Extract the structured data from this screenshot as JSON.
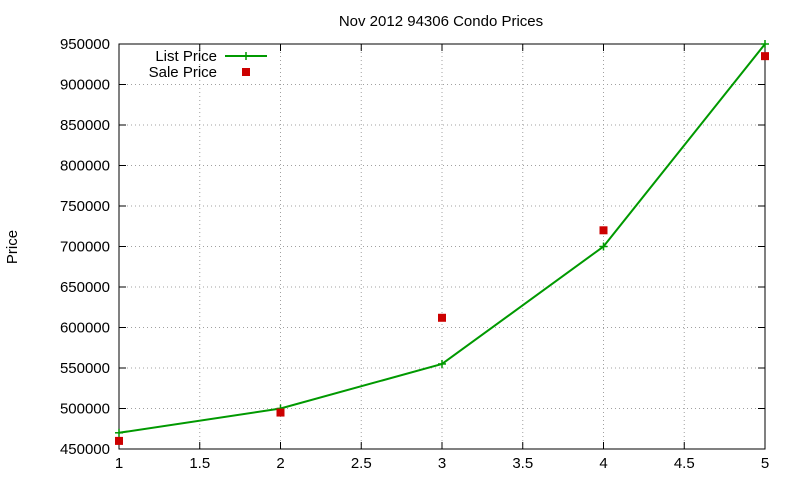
{
  "chart_data": {
    "type": "line",
    "title": "Nov 2012 94306 Condo Prices",
    "xlabel": "",
    "ylabel": "Price",
    "xlim": [
      1,
      5
    ],
    "ylim": [
      450000,
      950000
    ],
    "x_ticks": [
      "1",
      "1.5",
      "2",
      "2.5",
      "3",
      "3.5",
      "4",
      "4.5",
      "5"
    ],
    "y_ticks": [
      "450000",
      "500000",
      "550000",
      "600000",
      "650000",
      "700000",
      "750000",
      "800000",
      "850000",
      "900000",
      "950000"
    ],
    "grid": true,
    "legend_position": "top-left",
    "series": [
      {
        "name": "List Price",
        "style": "line+cross",
        "color": "#009900",
        "x": [
          1,
          2,
          3,
          4,
          5
        ],
        "y": [
          470000,
          500000,
          555000,
          700000,
          950000
        ]
      },
      {
        "name": "Sale Price",
        "style": "square-points",
        "color": "#cc0000",
        "x": [
          1,
          2,
          3,
          4,
          5
        ],
        "y": [
          460000,
          495000,
          612000,
          720000,
          935000
        ]
      }
    ]
  }
}
